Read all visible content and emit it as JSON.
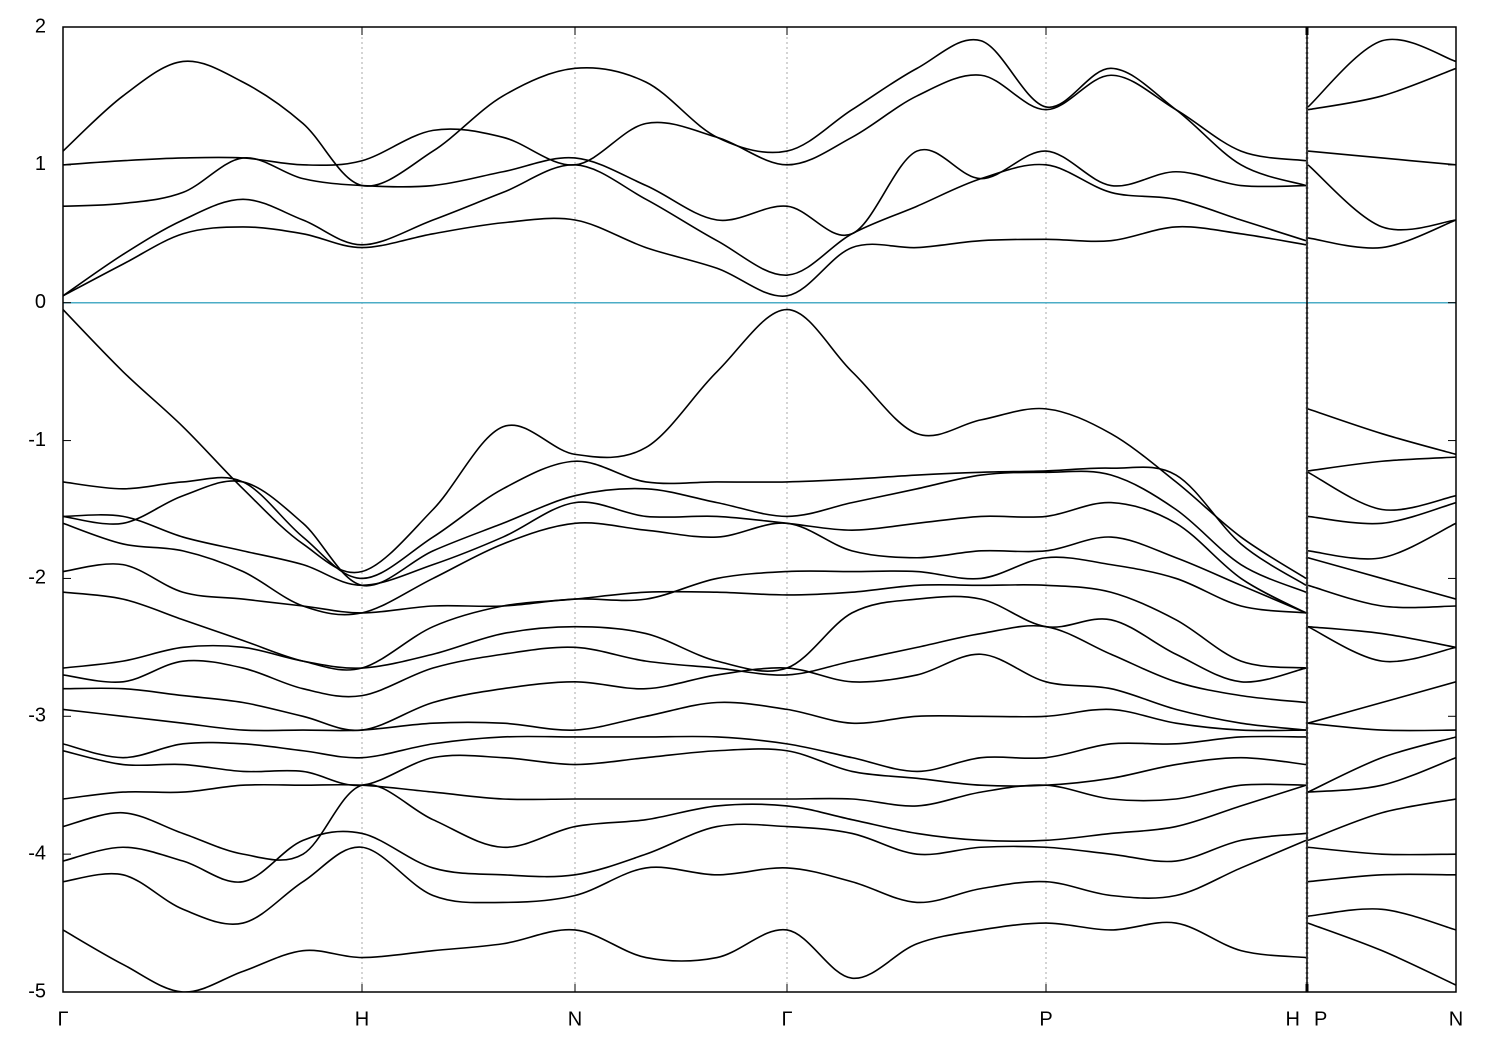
{
  "chart_data": {
    "type": "line",
    "grid": "x",
    "log_scale": false,
    "xlim": [
      0,
      1393
    ],
    "ylim": [
      -5,
      2
    ],
    "yticks": [
      -5,
      -4,
      -3,
      -2,
      -1,
      0,
      1,
      2
    ],
    "xticks": [
      {
        "value": 0,
        "label": "Γ"
      },
      {
        "value": 299,
        "label": "H"
      },
      {
        "value": 512,
        "label": "N"
      },
      {
        "value": 724,
        "label": "Γ"
      },
      {
        "value": 983,
        "label": "P"
      },
      {
        "value": 1243,
        "label": "H"
      },
      {
        "value": 1245,
        "label": "P"
      },
      {
        "value": 1393,
        "label": "N"
      }
    ],
    "hlines": [
      {
        "value": 0,
        "color": "#4bacc6"
      }
    ],
    "x": [
      0,
      60,
      120,
      180,
      240,
      299,
      370,
      440,
      512,
      583,
      654,
      724,
      789,
      854,
      918,
      983,
      1048,
      1113,
      1178,
      1243,
      1244,
      1245,
      1319,
      1393
    ],
    "series": [
      {
        "color": "#000000",
        "values": [
          0.05,
          0.28,
          0.5,
          0.55,
          0.5,
          0.4,
          0.5,
          0.58,
          0.6,
          0.4,
          0.25,
          0.05,
          0.4,
          0.4,
          0.45,
          0.46,
          0.45,
          0.55,
          0.5,
          0.42,
          null,
          0.47,
          0.4,
          0.6
        ]
      },
      {
        "color": "#000000",
        "values": [
          0.05,
          0.35,
          0.6,
          0.75,
          0.6,
          0.42,
          0.6,
          0.8,
          1.0,
          0.75,
          0.45,
          0.2,
          0.5,
          0.7,
          0.9,
          1.0,
          0.8,
          0.75,
          0.6,
          0.45,
          null,
          1.0,
          0.55,
          0.6
        ]
      },
      {
        "color": "#000000",
        "values": [
          0.7,
          0.72,
          0.8,
          1.05,
          0.9,
          0.85,
          0.85,
          0.95,
          1.05,
          0.85,
          0.6,
          0.7,
          0.5,
          1.1,
          0.9,
          1.1,
          0.85,
          0.95,
          0.85,
          0.85,
          null,
          1.1,
          1.05,
          1.0
        ]
      },
      {
        "color": "#000000",
        "values": [
          1.0,
          1.03,
          1.05,
          1.05,
          1.0,
          1.03,
          1.25,
          1.2,
          1.0,
          1.3,
          1.2,
          1.0,
          1.2,
          1.5,
          1.65,
          1.4,
          1.65,
          1.4,
          1.1,
          1.03,
          null,
          1.4,
          1.5,
          1.7
        ]
      },
      {
        "color": "#000000",
        "values": [
          1.1,
          1.5,
          1.75,
          1.6,
          1.3,
          0.85,
          1.1,
          1.5,
          1.7,
          1.6,
          1.2,
          1.1,
          1.4,
          1.7,
          1.9,
          1.42,
          1.7,
          1.4,
          1.0,
          0.85,
          null,
          1.42,
          1.9,
          1.75
        ]
      },
      {
        "color": "#000000",
        "values": [
          -0.05,
          -0.5,
          -0.9,
          -1.35,
          -1.75,
          -1.95,
          -1.5,
          -0.9,
          -1.1,
          -1.05,
          -0.5,
          -0.05,
          -0.5,
          -0.95,
          -0.85,
          -0.77,
          -0.95,
          -1.3,
          -1.7,
          -2.0,
          null,
          -0.77,
          -0.95,
          -1.1
        ]
      },
      {
        "color": "#000000",
        "values": [
          -1.3,
          -1.35,
          -1.3,
          -1.3,
          -1.7,
          -2.0,
          -1.7,
          -1.35,
          -1.15,
          -1.3,
          -1.3,
          -1.3,
          -1.28,
          -1.25,
          -1.23,
          -1.22,
          -1.2,
          -1.25,
          -1.75,
          -2.05,
          null,
          -1.22,
          -1.15,
          -1.12
        ]
      },
      {
        "color": "#000000",
        "values": [
          -1.55,
          -1.6,
          -1.4,
          -1.3,
          -1.6,
          -2.05,
          -1.8,
          -1.6,
          -1.4,
          -1.35,
          -1.45,
          -1.55,
          -1.45,
          -1.35,
          -1.25,
          -1.23,
          -1.25,
          -1.5,
          -1.9,
          -2.1,
          null,
          -1.23,
          -1.5,
          -1.4
        ]
      },
      {
        "color": "#000000",
        "values": [
          -1.55,
          -1.55,
          -1.7,
          -1.8,
          -1.9,
          -2.05,
          -1.9,
          -1.7,
          -1.45,
          -1.55,
          -1.55,
          -1.6,
          -1.65,
          -1.6,
          -1.55,
          -1.55,
          -1.45,
          -1.6,
          -2.0,
          -2.25,
          null,
          -1.55,
          -1.6,
          -1.45
        ]
      },
      {
        "color": "#000000",
        "values": [
          -1.6,
          -1.75,
          -1.8,
          -1.95,
          -2.2,
          -2.25,
          -2.0,
          -1.75,
          -1.6,
          -1.65,
          -1.7,
          -1.6,
          -1.8,
          -1.85,
          -1.8,
          -1.8,
          -1.7,
          -1.85,
          -2.05,
          -2.25,
          null,
          -1.8,
          -1.85,
          -1.6
        ]
      },
      {
        "color": "#000000",
        "values": [
          -1.95,
          -1.9,
          -2.1,
          -2.15,
          -2.2,
          -2.25,
          -2.2,
          -2.2,
          -2.15,
          -2.15,
          -2.0,
          -1.95,
          -1.95,
          -1.95,
          -2.0,
          -1.85,
          -1.9,
          -2.0,
          -2.2,
          -2.25,
          null,
          -1.85,
          -2.0,
          -2.15
        ]
      },
      {
        "color": "#000000",
        "values": [
          -2.1,
          -2.15,
          -2.3,
          -2.45,
          -2.6,
          -2.65,
          -2.35,
          -2.2,
          -2.15,
          -2.1,
          -2.1,
          -2.12,
          -2.1,
          -2.05,
          -2.05,
          -2.05,
          -2.1,
          -2.3,
          -2.6,
          -2.65,
          null,
          -2.05,
          -2.2,
          -2.2
        ]
      },
      {
        "color": "#000000",
        "values": [
          -2.65,
          -2.6,
          -2.5,
          -2.5,
          -2.6,
          -2.65,
          -2.55,
          -2.4,
          -2.35,
          -2.4,
          -2.6,
          -2.65,
          -2.25,
          -2.15,
          -2.15,
          -2.35,
          -2.3,
          -2.55,
          -2.75,
          -2.65,
          null,
          -2.35,
          -2.4,
          -2.5
        ]
      },
      {
        "color": "#000000",
        "values": [
          -2.7,
          -2.75,
          -2.6,
          -2.65,
          -2.8,
          -2.85,
          -2.65,
          -2.55,
          -2.5,
          -2.6,
          -2.65,
          -2.7,
          -2.6,
          -2.5,
          -2.4,
          -2.35,
          -2.55,
          -2.75,
          -2.85,
          -2.9,
          null,
          -2.35,
          -2.6,
          -2.5
        ]
      },
      {
        "color": "#000000",
        "values": [
          -2.8,
          -2.8,
          -2.85,
          -2.9,
          -3.0,
          -3.1,
          -2.9,
          -2.8,
          -2.75,
          -2.8,
          -2.7,
          -2.65,
          -2.75,
          -2.7,
          -2.55,
          -2.75,
          -2.8,
          -2.95,
          -3.05,
          -3.1,
          null,
          -3.05,
          -2.9,
          -2.75
        ]
      },
      {
        "color": "#000000",
        "values": [
          -2.95,
          -3.0,
          -3.05,
          -3.1,
          -3.1,
          -3.1,
          -3.05,
          -3.05,
          -3.1,
          -3.0,
          -2.9,
          -2.95,
          -3.05,
          -3.0,
          -3.0,
          -3.0,
          -2.95,
          -3.05,
          -3.1,
          -3.1,
          null,
          -3.05,
          -3.1,
          -3.1
        ]
      },
      {
        "color": "#000000",
        "values": [
          -3.2,
          -3.3,
          -3.2,
          -3.2,
          -3.25,
          -3.3,
          -3.2,
          -3.15,
          -3.15,
          -3.15,
          -3.15,
          -3.2,
          -3.3,
          -3.4,
          -3.3,
          -3.3,
          -3.2,
          -3.2,
          -3.15,
          -3.15,
          null,
          -3.55,
          -3.3,
          -3.15
        ]
      },
      {
        "color": "#000000",
        "values": [
          -3.25,
          -3.35,
          -3.35,
          -3.4,
          -3.4,
          -3.5,
          -3.3,
          -3.3,
          -3.35,
          -3.3,
          -3.25,
          -3.25,
          -3.4,
          -3.45,
          -3.5,
          -3.5,
          -3.45,
          -3.35,
          -3.3,
          -3.35,
          null,
          -3.55,
          -3.5,
          -3.3
        ]
      },
      {
        "color": "#000000",
        "values": [
          -3.6,
          -3.55,
          -3.55,
          -3.5,
          -3.5,
          -3.5,
          -3.55,
          -3.6,
          -3.6,
          -3.6,
          -3.6,
          -3.6,
          -3.6,
          -3.65,
          -3.55,
          -3.5,
          -3.6,
          -3.6,
          -3.5,
          -3.5,
          null,
          -3.9,
          -3.7,
          -3.6
        ]
      },
      {
        "color": "#000000",
        "values": [
          -3.8,
          -3.7,
          -3.85,
          -4.0,
          -4.0,
          -3.5,
          -3.75,
          -3.95,
          -3.8,
          -3.75,
          -3.65,
          -3.65,
          -3.75,
          -3.85,
          -3.9,
          -3.9,
          -3.85,
          -3.8,
          -3.65,
          -3.5,
          null,
          -3.95,
          -4.0,
          -4.0
        ]
      },
      {
        "color": "#000000",
        "values": [
          -4.05,
          -3.95,
          -4.05,
          -4.2,
          -3.9,
          -3.85,
          -4.1,
          -4.15,
          -4.15,
          -4.0,
          -3.8,
          -3.8,
          -3.85,
          -4.0,
          -3.95,
          -3.95,
          -4.0,
          -4.05,
          -3.9,
          -3.85,
          null,
          -4.2,
          -4.15,
          -4.15
        ]
      },
      {
        "color": "#000000",
        "values": [
          -4.2,
          -4.15,
          -4.4,
          -4.5,
          -4.2,
          -3.95,
          -4.3,
          -4.35,
          -4.3,
          -4.1,
          -4.15,
          -4.1,
          -4.2,
          -4.35,
          -4.25,
          -4.2,
          -4.3,
          -4.3,
          -4.1,
          -3.9,
          null,
          -4.45,
          -4.4,
          -4.55
        ]
      },
      {
        "color": "#000000",
        "values": [
          -4.55,
          -4.8,
          -5.0,
          -4.85,
          -4.7,
          -4.75,
          -4.7,
          -4.65,
          -4.55,
          -4.75,
          -4.75,
          -4.55,
          -4.9,
          -4.65,
          -4.55,
          -4.5,
          -4.55,
          -4.5,
          -4.7,
          -4.75,
          null,
          -4.5,
          -4.7,
          -4.95
        ]
      }
    ]
  }
}
